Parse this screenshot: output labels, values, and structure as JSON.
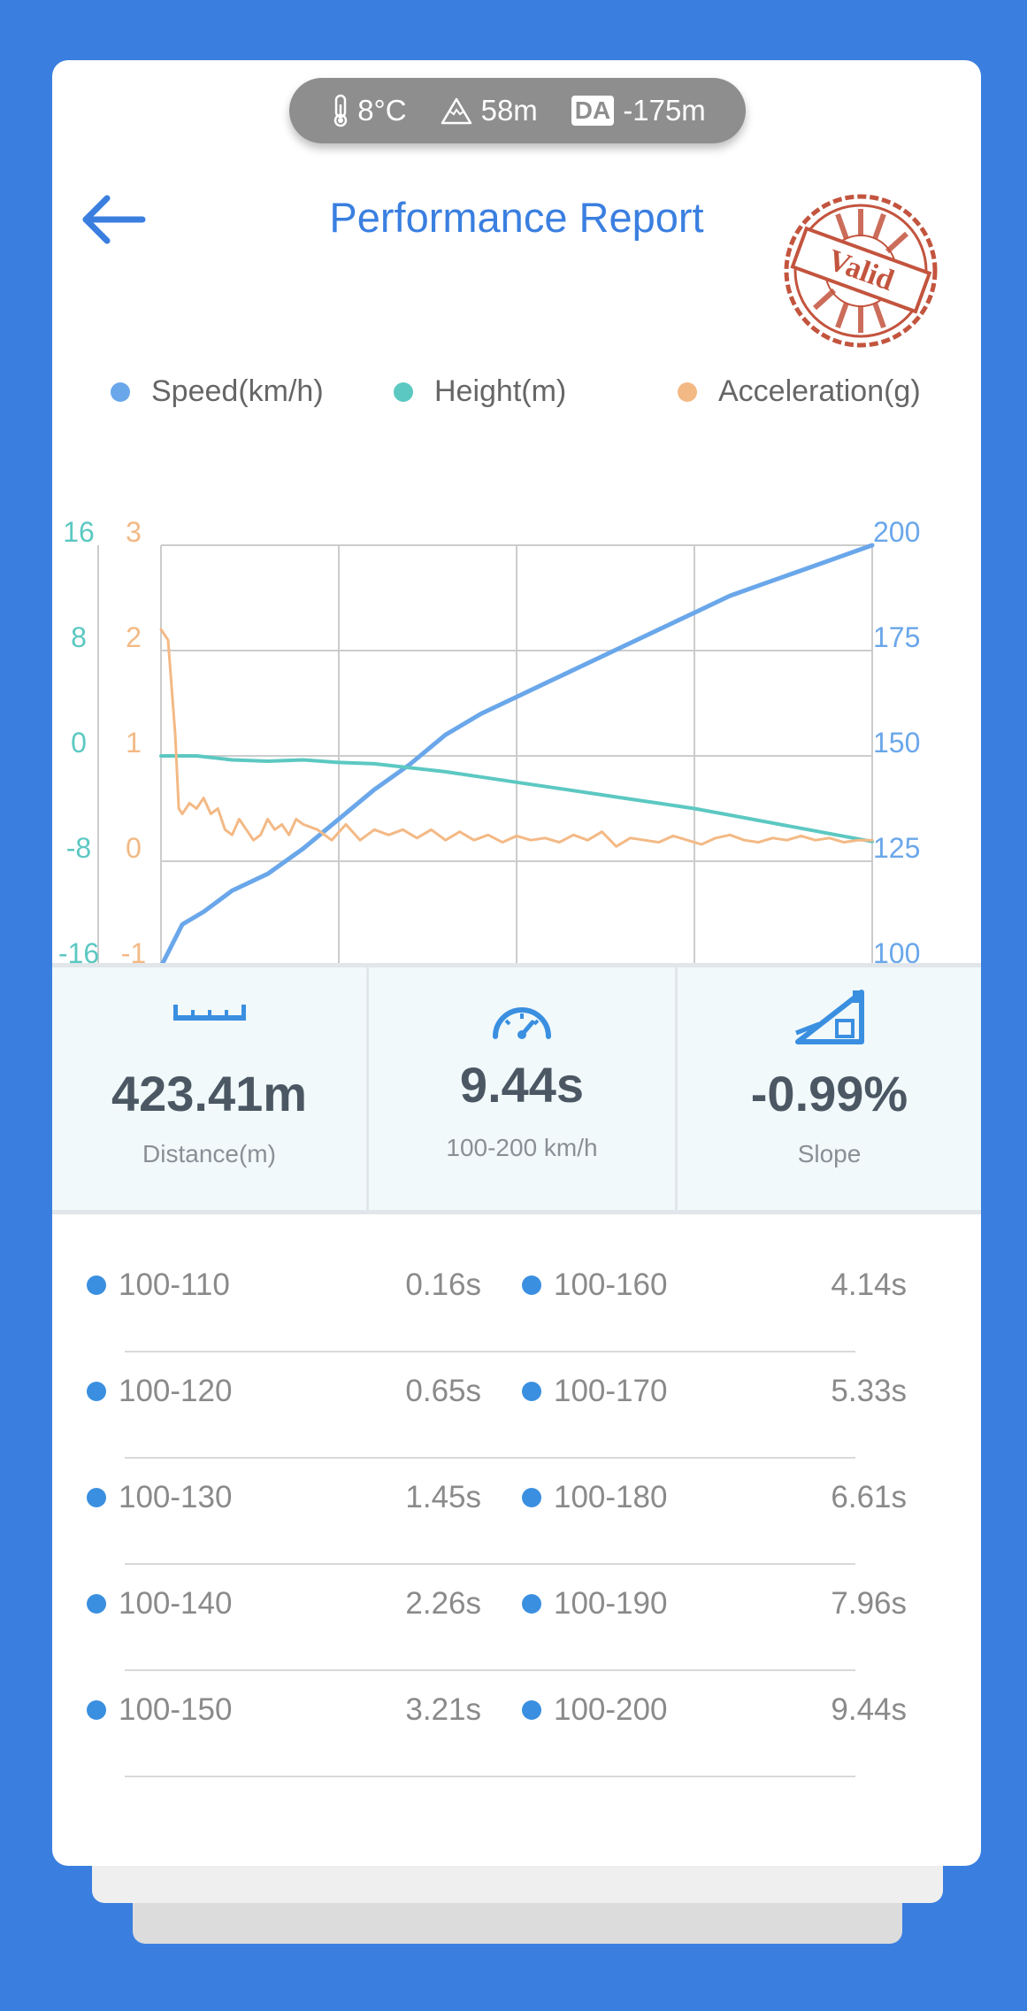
{
  "conditions": {
    "temperature": "8°C",
    "altitude": "58m",
    "da_label": "DA",
    "density_altitude": "-175m"
  },
  "header": {
    "title": "Performance Report",
    "stamp_text": "Valid"
  },
  "legend": [
    {
      "label": "Speed(km/h)",
      "color": "#6aa7ea"
    },
    {
      "label": "Height(m)",
      "color": "#5cc8c2"
    },
    {
      "label": "Acceleration(g)",
      "color": "#f3b985"
    }
  ],
  "chart_data": {
    "type": "line",
    "axes": {
      "height_ticks": [
        "16",
        "8",
        "0",
        "-8",
        "-16"
      ],
      "accel_ticks": [
        "3",
        "2",
        "1",
        "0",
        "-1"
      ],
      "speed_ticks": [
        "200",
        "175",
        "150",
        "125",
        "100"
      ],
      "height_range": [
        -16,
        16
      ],
      "accel_range": [
        -1,
        3
      ],
      "speed_range": [
        100,
        200
      ],
      "grid": true
    },
    "series": [
      {
        "name": "Speed(km/h)",
        "color": "#6aa7ea",
        "x": [
          0,
          0.03,
          0.06,
          0.1,
          0.15,
          0.2,
          0.25,
          0.3,
          0.35,
          0.4,
          0.45,
          0.5,
          0.55,
          0.6,
          0.65,
          0.7,
          0.75,
          0.8,
          0.85,
          0.9,
          0.95,
          1.0
        ],
        "values": [
          100,
          110,
          113,
          118,
          122,
          128,
          135,
          142,
          148,
          155,
          160,
          164,
          168,
          172,
          176,
          180,
          184,
          188,
          191,
          194,
          197,
          200
        ]
      },
      {
        "name": "Height(m)",
        "color": "#5cc8c2",
        "x": [
          0,
          0.05,
          0.1,
          0.15,
          0.2,
          0.25,
          0.3,
          0.35,
          0.4,
          0.45,
          0.5,
          0.55,
          0.6,
          0.65,
          0.7,
          0.75,
          0.8,
          0.85,
          0.9,
          0.95,
          1.0
        ],
        "values": [
          0,
          0,
          -0.3,
          -0.4,
          -0.3,
          -0.5,
          -0.6,
          -0.9,
          -1.2,
          -1.6,
          -2.0,
          -2.4,
          -2.8,
          -3.2,
          -3.6,
          -4.0,
          -4.5,
          -5.0,
          -5.5,
          -6.0,
          -6.5
        ]
      },
      {
        "name": "Acceleration(g)",
        "color": "#f3b985",
        "x": [
          0,
          0.01,
          0.02,
          0.025,
          0.03,
          0.04,
          0.05,
          0.06,
          0.07,
          0.08,
          0.09,
          0.1,
          0.11,
          0.12,
          0.13,
          0.14,
          0.15,
          0.16,
          0.17,
          0.18,
          0.19,
          0.2,
          0.22,
          0.24,
          0.26,
          0.28,
          0.3,
          0.32,
          0.34,
          0.36,
          0.38,
          0.4,
          0.42,
          0.44,
          0.46,
          0.48,
          0.5,
          0.52,
          0.54,
          0.56,
          0.58,
          0.6,
          0.62,
          0.64,
          0.66,
          0.68,
          0.7,
          0.72,
          0.74,
          0.76,
          0.78,
          0.8,
          0.82,
          0.84,
          0.86,
          0.88,
          0.9,
          0.92,
          0.94,
          0.96,
          0.98,
          1.0
        ],
        "values": [
          2.2,
          2.1,
          1.2,
          0.5,
          0.45,
          0.55,
          0.5,
          0.6,
          0.45,
          0.5,
          0.3,
          0.25,
          0.4,
          0.3,
          0.2,
          0.25,
          0.4,
          0.3,
          0.35,
          0.25,
          0.4,
          0.35,
          0.3,
          0.2,
          0.35,
          0.2,
          0.3,
          0.25,
          0.3,
          0.22,
          0.3,
          0.2,
          0.28,
          0.2,
          0.25,
          0.18,
          0.24,
          0.2,
          0.22,
          0.18,
          0.25,
          0.2,
          0.28,
          0.14,
          0.22,
          0.2,
          0.18,
          0.24,
          0.2,
          0.16,
          0.22,
          0.25,
          0.2,
          0.18,
          0.22,
          0.2,
          0.24,
          0.2,
          0.22,
          0.18,
          0.2,
          0.2
        ]
      }
    ]
  },
  "stats": {
    "distance_value": "423.41m",
    "distance_label": "Distance(m)",
    "time_value": "9.44s",
    "time_label": "100-200 km/h",
    "slope_value": "-0.99%",
    "slope_label": "Slope"
  },
  "splits": [
    {
      "left_range": "100-110",
      "left_time": "0.16s",
      "right_range": "100-160",
      "right_time": "4.14s"
    },
    {
      "left_range": "100-120",
      "left_time": "0.65s",
      "right_range": "100-170",
      "right_time": "5.33s"
    },
    {
      "left_range": "100-130",
      "left_time": "1.45s",
      "right_range": "100-180",
      "right_time": "6.61s"
    },
    {
      "left_range": "100-140",
      "left_time": "2.26s",
      "right_range": "100-190",
      "right_time": "7.96s"
    },
    {
      "left_range": "100-150",
      "left_time": "3.21s",
      "right_range": "100-200",
      "right_time": "9.44s"
    }
  ]
}
